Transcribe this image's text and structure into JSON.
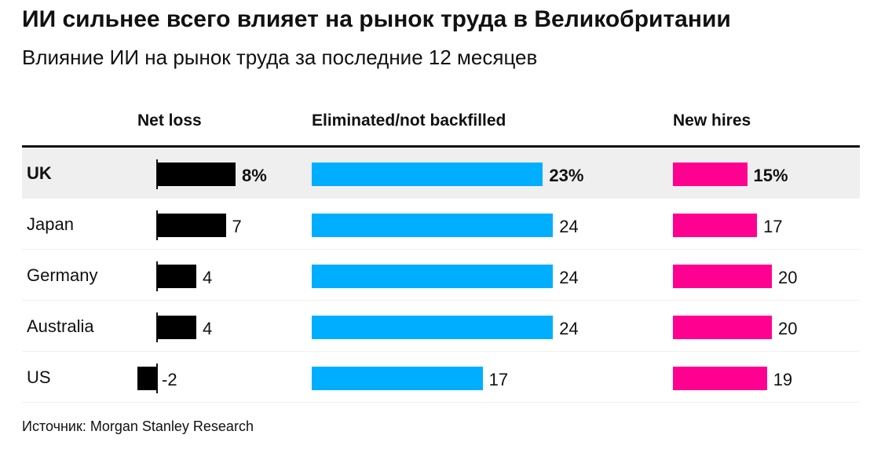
{
  "title": "ИИ сильнее всего влияет на рынок труда в Великобритании",
  "subtitle": "Влияние ИИ на рынок труда за последние 12 месяцев",
  "source": "Источник: Morgan Stanley Research",
  "chart_data": {
    "type": "bar",
    "categories": [
      "UK",
      "Japan",
      "Germany",
      "Australia",
      "US"
    ],
    "highlight": "UK",
    "series": [
      {
        "name": "Net loss",
        "values": [
          8,
          7,
          4,
          4,
          -2
        ],
        "labels": [
          "8%",
          "7",
          "4",
          "4",
          "-2"
        ],
        "color": "#000000"
      },
      {
        "name": "Eliminated/not backfilled",
        "values": [
          23,
          24,
          24,
          24,
          17
        ],
        "labels": [
          "23%",
          "24",
          "24",
          "24",
          "17"
        ],
        "color": "#00aeff"
      },
      {
        "name": "New hires",
        "values": [
          15,
          17,
          20,
          20,
          19
        ],
        "labels": [
          "15%",
          "17",
          "20",
          "20",
          "19"
        ],
        "color": "#ff0090"
      }
    ],
    "highlight_color": "#efefef"
  }
}
